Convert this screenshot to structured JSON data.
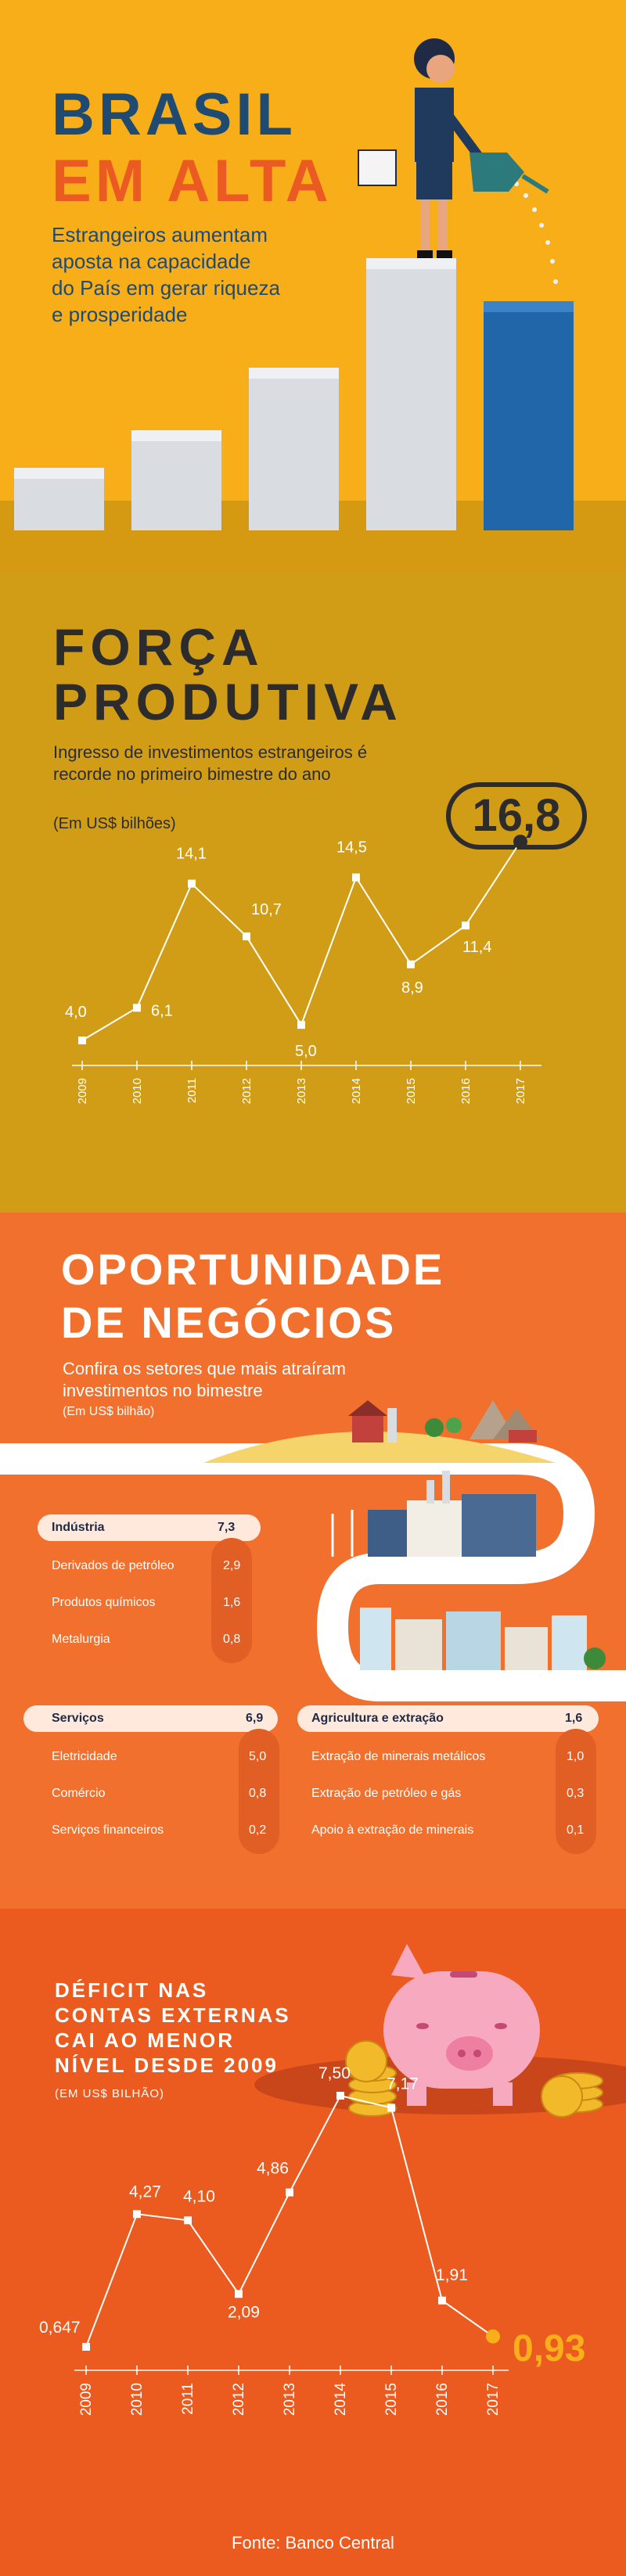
{
  "hero": {
    "title_line1": "BRASIL",
    "title_line2": "EM ALTA",
    "subtitle": [
      "Estrangeiros aumentam",
      "aposta na capacidade",
      "do País em gerar riqueza",
      "e prosperidade"
    ]
  },
  "forca": {
    "title_line1": "FORÇA",
    "title_line2": "PRODUTIVA",
    "subtitle": [
      "Ingresso de investimentos estrangeiros é",
      "recorde no primeiro bimestre do ano"
    ],
    "unit": "(Em US$ bilhões)",
    "highlight": "16,8",
    "chart_data": {
      "type": "line",
      "x": [
        "2009",
        "2010",
        "2011",
        "2012",
        "2013",
        "2014",
        "2015",
        "2016",
        "2017"
      ],
      "values": [
        4.0,
        6.1,
        14.1,
        10.7,
        5.0,
        14.5,
        8.9,
        11.4,
        16.8
      ],
      "labels": [
        "4,0",
        "6,1",
        "14,1",
        "10,7",
        "5,0",
        "14,5",
        "8,9",
        "11,4",
        "16,8"
      ]
    }
  },
  "oportunidade": {
    "title_line1": "OPORTUNIDADE",
    "title_line2": "DE NEGÓCIOS",
    "subtitle": [
      "Confira os setores que mais atraíram",
      "investimentos no bimestre"
    ],
    "unit": "(Em US$ bilhão)",
    "industria": {
      "label": "Indústria",
      "value": "7,3",
      "items": [
        {
          "label": "Derivados de petróleo",
          "value": "2,9"
        },
        {
          "label": "Produtos químicos",
          "value": "1,6"
        },
        {
          "label": "Metalurgia",
          "value": "0,8"
        }
      ]
    },
    "servicos": {
      "label": "Serviços",
      "value": "6,9",
      "items": [
        {
          "label": "Eletricidade",
          "value": "5,0"
        },
        {
          "label": "Comércio",
          "value": "0,8"
        },
        {
          "label": "Serviços financeiros",
          "value": "0,2"
        }
      ]
    },
    "agricultura": {
      "label": "Agricultura e extração",
      "value": "1,6",
      "items": [
        {
          "label": "Extração de minerais metálicos",
          "value": "1,0"
        },
        {
          "label": "Extração de petróleo e gás",
          "value": "0,3"
        },
        {
          "label": "Apoio à extração de minerais",
          "value": "0,1"
        }
      ]
    }
  },
  "deficit": {
    "title": [
      "DÉFICIT NAS",
      "CONTAS EXTERNAS",
      "CAI AO MENOR",
      "NÍVEL DESDE 2009"
    ],
    "unit": "(EM US$ BILHÃO)",
    "highlight": "0,93",
    "chart_data": {
      "type": "line",
      "x": [
        "2009",
        "2010",
        "2011",
        "2012",
        "2013",
        "2014",
        "2015",
        "2016",
        "2017"
      ],
      "values": [
        0.647,
        4.27,
        4.1,
        2.09,
        4.86,
        7.5,
        7.17,
        1.91,
        0.93
      ],
      "labels": [
        "0,647",
        "4,27",
        "4,10",
        "2,09",
        "4,86",
        "7,50",
        "7,17",
        "1,91",
        "0,93"
      ]
    },
    "source": "Fonte: Banco Central"
  },
  "colors": {
    "navy": "#1f4b72",
    "orange": "#ec5a23",
    "yellow": "#f8ae18",
    "mustard": "#d29d16"
  }
}
